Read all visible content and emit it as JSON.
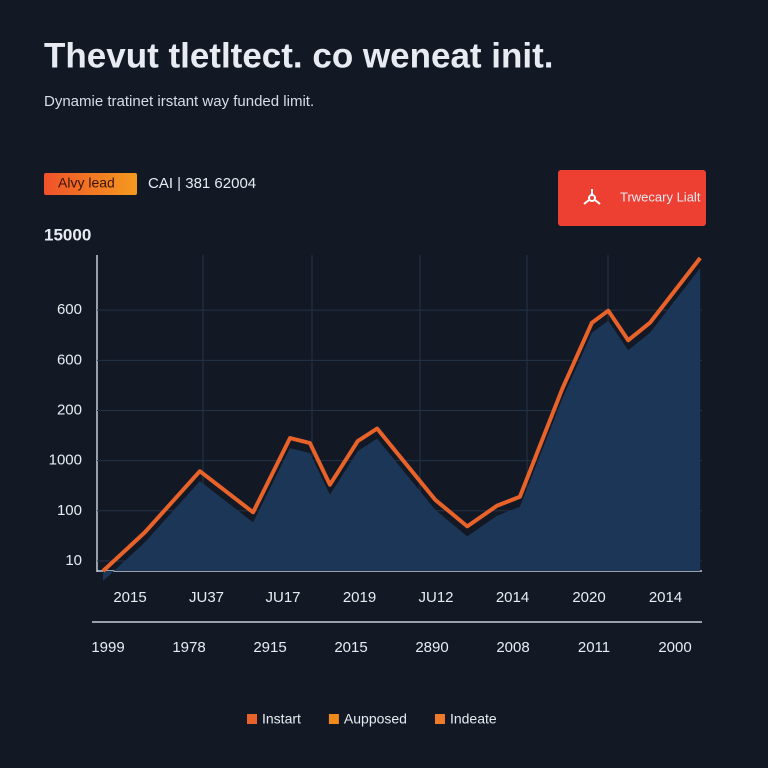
{
  "chart_data": {
    "type": "line",
    "title": "Thevut tletltect. co weneat init.",
    "subtitle": "Dynamie tratinet irstant way funded limit.",
    "badge": "Alvy lead",
    "info": "CAI | 381 62004",
    "button": "Trwecary Lialt",
    "y_axis_top": "15000",
    "x": [
      1,
      7.9,
      17,
      25.8,
      31.9,
      35.2,
      38.5,
      43.1,
      46.3,
      55.9,
      61.2,
      66.1,
      69.9,
      76.9,
      81.8,
      84.5,
      87.8,
      91.4,
      99.7
    ],
    "xlim": [
      0,
      100
    ],
    "series": [
      {
        "color": "#e8622a",
        "values": [
          -0.2,
          0.57,
          1.79,
          0.97,
          2.45,
          2.35,
          1.52,
          2.39,
          2.64,
          1.22,
          0.69,
          1.1,
          1.28,
          3.43,
          4.75,
          4.99,
          4.4,
          4.75,
          6.04
        ]
      }
    ],
    "ylim": [
      -0.2,
      6.1
    ],
    "yticks": [
      {
        "value": 0,
        "label": "10"
      },
      {
        "value": 1,
        "label": "100"
      },
      {
        "value": 2,
        "label": "1000"
      },
      {
        "value": 3,
        "label": "200"
      },
      {
        "value": 4,
        "label": "600"
      },
      {
        "value": 5,
        "label": "600"
      }
    ],
    "categories": [
      "2015",
      "JU37",
      "JU17",
      "2019",
      "JU12",
      "2014",
      "2020",
      "2014"
    ],
    "categories2": [
      "1999",
      "1978",
      "2915",
      "2015",
      "2890",
      "2008",
      "2011",
      "2000"
    ],
    "area_color": "#1c3657",
    "grid": true,
    "legend": [
      {
        "label": "Instart",
        "color": "#e8622a"
      },
      {
        "label": "Aupposed",
        "color": "#f08a1c"
      },
      {
        "label": "Indeate",
        "color": "#ee7a2a"
      }
    ]
  }
}
